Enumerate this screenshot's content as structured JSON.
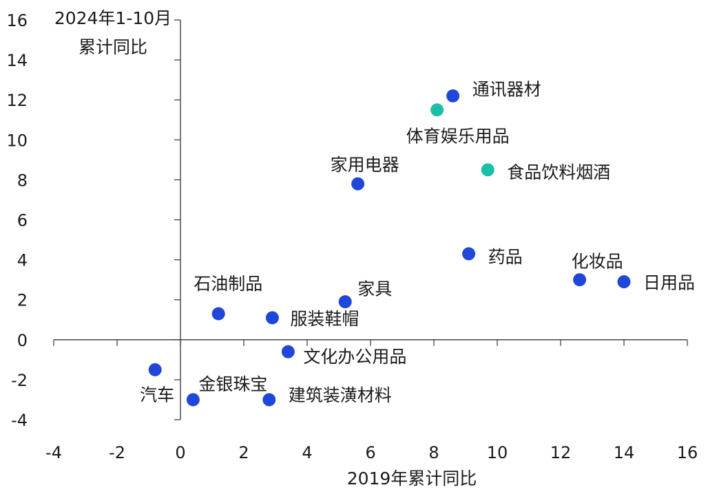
{
  "chart_data": {
    "type": "scatter",
    "xlabel": "2019年累计同比",
    "ylabel_lines": [
      "2024年1-10月",
      "累计同比"
    ],
    "xlim": [
      -4,
      16
    ],
    "ylim": [
      -4,
      16
    ],
    "x_ticks": [
      "-4",
      "-2",
      "0",
      "2",
      "4",
      "6",
      "8",
      "10",
      "12",
      "14",
      "16"
    ],
    "y_ticks": [
      "16",
      "14",
      "12",
      "10",
      "8",
      "6",
      "4",
      "2",
      "0",
      "-2",
      "-4"
    ],
    "grid": false,
    "colors": {
      "blue": "#1f47d9",
      "teal": "#19bfa6",
      "axis": "#333333"
    },
    "points": [
      {
        "name": "通讯器材",
        "x": 8.6,
        "y": 12.2,
        "color": "blue"
      },
      {
        "name": "体育娱乐用品",
        "x": 8.1,
        "y": 11.5,
        "color": "teal"
      },
      {
        "name": "食品饮料烟酒",
        "x": 9.7,
        "y": 8.5,
        "color": "teal"
      },
      {
        "name": "家用电器",
        "x": 5.6,
        "y": 7.8,
        "color": "blue"
      },
      {
        "name": "药品",
        "x": 9.1,
        "y": 4.3,
        "color": "blue"
      },
      {
        "name": "化妆品",
        "x": 12.6,
        "y": 3.0,
        "color": "blue"
      },
      {
        "name": "日用品",
        "x": 14.0,
        "y": 2.9,
        "color": "blue"
      },
      {
        "name": "家具",
        "x": 5.2,
        "y": 1.9,
        "color": "blue"
      },
      {
        "name": "石油制品",
        "x": 1.2,
        "y": 1.3,
        "color": "blue"
      },
      {
        "name": "服装鞋帽",
        "x": 2.9,
        "y": 1.1,
        "color": "blue"
      },
      {
        "name": "文化办公用品",
        "x": 3.4,
        "y": -0.6,
        "color": "blue"
      },
      {
        "name": "汽车",
        "x": -0.8,
        "y": -1.5,
        "color": "blue"
      },
      {
        "name": "金银珠宝",
        "x": 0.4,
        "y": -3.0,
        "color": "blue"
      },
      {
        "name": "建筑装潢材料",
        "x": 2.8,
        "y": -3.0,
        "color": "blue"
      }
    ]
  }
}
